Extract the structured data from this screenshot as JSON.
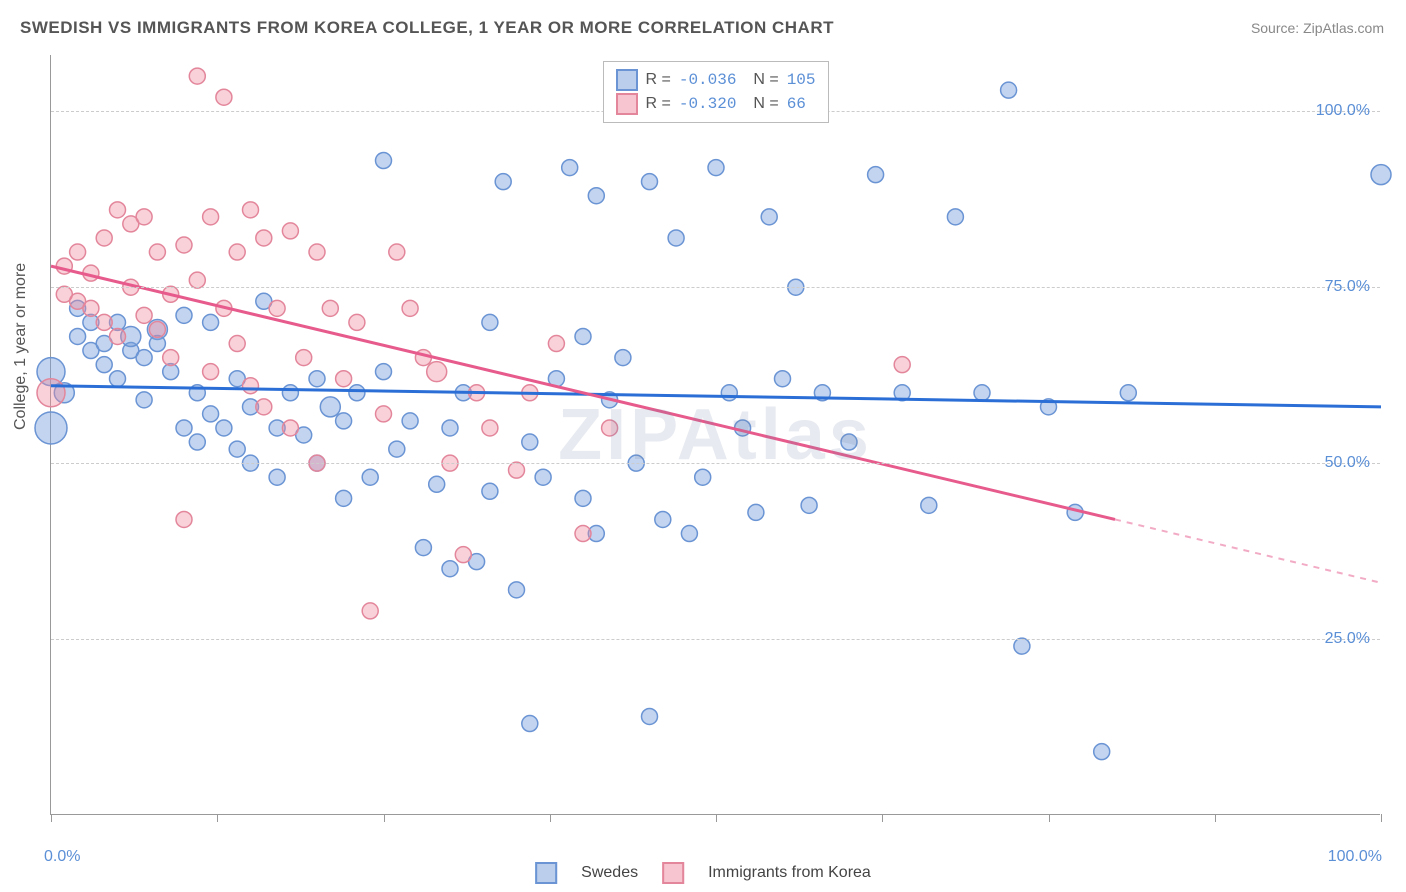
{
  "title": "SWEDISH VS IMMIGRANTS FROM KOREA COLLEGE, 1 YEAR OR MORE CORRELATION CHART",
  "source": "Source: ZipAtlas.com",
  "watermark": "ZIPAtlas",
  "ylabel": "College, 1 year or more",
  "chart": {
    "type": "scatter",
    "xlim": [
      0,
      100
    ],
    "ylim": [
      0,
      108
    ],
    "yticks": [
      25,
      50,
      75,
      100
    ],
    "ytick_labels": [
      "25.0%",
      "50.0%",
      "75.0%",
      "100.0%"
    ],
    "xticks": [
      0,
      12.5,
      25,
      37.5,
      50,
      62.5,
      75,
      87.5,
      100
    ],
    "xaxis_min_label": "0.0%",
    "xaxis_max_label": "100.0%",
    "grid_color": "#cccccc",
    "background": "#ffffff",
    "series": [
      {
        "name": "Swedes",
        "marker_fill": "rgba(120,160,220,0.45)",
        "marker_stroke": "#6a94d4",
        "line_color": "#2b6fd6",
        "R": "-0.036",
        "N": "105",
        "trend": {
          "x1": 0,
          "y1": 61,
          "x2": 100,
          "y2": 58,
          "dash_from_x": null
        },
        "points": [
          [
            0,
            63,
            14
          ],
          [
            0,
            55,
            16
          ],
          [
            1,
            60,
            10
          ],
          [
            2,
            72,
            8
          ],
          [
            2,
            68,
            8
          ],
          [
            3,
            66,
            8
          ],
          [
            3,
            70,
            8
          ],
          [
            4,
            67,
            8
          ],
          [
            4,
            64,
            8
          ],
          [
            5,
            70,
            8
          ],
          [
            5,
            62,
            8
          ],
          [
            6,
            66,
            8
          ],
          [
            6,
            68,
            10
          ],
          [
            7,
            59,
            8
          ],
          [
            7,
            65,
            8
          ],
          [
            8,
            69,
            10
          ],
          [
            8,
            67,
            8
          ],
          [
            9,
            63,
            8
          ],
          [
            10,
            71,
            8
          ],
          [
            10,
            55,
            8
          ],
          [
            11,
            60,
            8
          ],
          [
            11,
            53,
            8
          ],
          [
            12,
            70,
            8
          ],
          [
            12,
            57,
            8
          ],
          [
            13,
            55,
            8
          ],
          [
            14,
            52,
            8
          ],
          [
            14,
            62,
            8
          ],
          [
            15,
            58,
            8
          ],
          [
            15,
            50,
            8
          ],
          [
            16,
            73,
            8
          ],
          [
            17,
            55,
            8
          ],
          [
            17,
            48,
            8
          ],
          [
            18,
            60,
            8
          ],
          [
            19,
            54,
            8
          ],
          [
            20,
            62,
            8
          ],
          [
            20,
            50,
            8
          ],
          [
            21,
            58,
            10
          ],
          [
            22,
            45,
            8
          ],
          [
            22,
            56,
            8
          ],
          [
            23,
            60,
            8
          ],
          [
            24,
            48,
            8
          ],
          [
            25,
            63,
            8
          ],
          [
            25,
            93,
            8
          ],
          [
            26,
            52,
            8
          ],
          [
            27,
            56,
            8
          ],
          [
            28,
            38,
            8
          ],
          [
            29,
            47,
            8
          ],
          [
            30,
            55,
            8
          ],
          [
            30,
            35,
            8
          ],
          [
            31,
            60,
            8
          ],
          [
            32,
            36,
            8
          ],
          [
            33,
            46,
            8
          ],
          [
            33,
            70,
            8
          ],
          [
            34,
            90,
            8
          ],
          [
            35,
            32,
            8
          ],
          [
            36,
            53,
            8
          ],
          [
            36,
            13,
            8
          ],
          [
            37,
            48,
            8
          ],
          [
            38,
            62,
            8
          ],
          [
            39,
            92,
            8
          ],
          [
            40,
            68,
            8
          ],
          [
            40,
            45,
            8
          ],
          [
            41,
            88,
            8
          ],
          [
            41,
            40,
            8
          ],
          [
            42,
            59,
            8
          ],
          [
            43,
            65,
            8
          ],
          [
            44,
            50,
            8
          ],
          [
            45,
            90,
            8
          ],
          [
            45,
            14,
            8
          ],
          [
            46,
            42,
            8
          ],
          [
            47,
            82,
            8
          ],
          [
            48,
            40,
            8
          ],
          [
            49,
            48,
            8
          ],
          [
            50,
            92,
            8
          ],
          [
            51,
            60,
            8
          ],
          [
            52,
            55,
            8
          ],
          [
            53,
            43,
            8
          ],
          [
            54,
            85,
            8
          ],
          [
            55,
            62,
            8
          ],
          [
            56,
            75,
            8
          ],
          [
            57,
            44,
            8
          ],
          [
            58,
            60,
            8
          ],
          [
            60,
            53,
            8
          ],
          [
            62,
            91,
            8
          ],
          [
            64,
            60,
            8
          ],
          [
            66,
            44,
            8
          ],
          [
            68,
            85,
            8
          ],
          [
            70,
            60,
            8
          ],
          [
            72,
            103,
            8
          ],
          [
            73,
            24,
            8
          ],
          [
            75,
            58,
            8
          ],
          [
            77,
            43,
            8
          ],
          [
            79,
            9,
            8
          ],
          [
            81,
            60,
            8
          ],
          [
            100,
            91,
            10
          ]
        ]
      },
      {
        "name": "Immigrants from Korea",
        "marker_fill": "rgba(240,140,160,0.40)",
        "marker_stroke": "#e3869b",
        "line_color": "#e75a8c",
        "R": "-0.320",
        "N": "66",
        "trend": {
          "x1": 0,
          "y1": 78,
          "x2": 100,
          "y2": 33,
          "dash_from_x": 80
        },
        "points": [
          [
            0,
            60,
            14
          ],
          [
            1,
            78,
            8
          ],
          [
            1,
            74,
            8
          ],
          [
            2,
            73,
            8
          ],
          [
            2,
            80,
            8
          ],
          [
            3,
            72,
            8
          ],
          [
            3,
            77,
            8
          ],
          [
            4,
            82,
            8
          ],
          [
            4,
            70,
            8
          ],
          [
            5,
            86,
            8
          ],
          [
            5,
            68,
            8
          ],
          [
            6,
            84,
            8
          ],
          [
            6,
            75,
            8
          ],
          [
            7,
            71,
            8
          ],
          [
            7,
            85,
            8
          ],
          [
            8,
            69,
            8
          ],
          [
            8,
            80,
            8
          ],
          [
            9,
            74,
            8
          ],
          [
            9,
            65,
            8
          ],
          [
            10,
            81,
            8
          ],
          [
            10,
            42,
            8
          ],
          [
            11,
            76,
            8
          ],
          [
            11,
            105,
            8
          ],
          [
            12,
            63,
            8
          ],
          [
            12,
            85,
            8
          ],
          [
            13,
            72,
            8
          ],
          [
            13,
            102,
            8
          ],
          [
            14,
            67,
            8
          ],
          [
            14,
            80,
            8
          ],
          [
            15,
            61,
            8
          ],
          [
            15,
            86,
            8
          ],
          [
            16,
            58,
            8
          ],
          [
            16,
            82,
            8
          ],
          [
            17,
            72,
            8
          ],
          [
            18,
            83,
            8
          ],
          [
            18,
            55,
            8
          ],
          [
            19,
            65,
            8
          ],
          [
            20,
            80,
            8
          ],
          [
            20,
            50,
            8
          ],
          [
            21,
            72,
            8
          ],
          [
            22,
            62,
            8
          ],
          [
            23,
            70,
            8
          ],
          [
            24,
            29,
            8
          ],
          [
            25,
            57,
            8
          ],
          [
            26,
            80,
            8
          ],
          [
            27,
            72,
            8
          ],
          [
            28,
            65,
            8
          ],
          [
            29,
            63,
            10
          ],
          [
            30,
            50,
            8
          ],
          [
            31,
            37,
            8
          ],
          [
            32,
            60,
            8
          ],
          [
            33,
            55,
            8
          ],
          [
            35,
            49,
            8
          ],
          [
            36,
            60,
            8
          ],
          [
            38,
            67,
            8
          ],
          [
            40,
            40,
            8
          ],
          [
            42,
            55,
            8
          ],
          [
            64,
            64,
            8
          ]
        ]
      }
    ],
    "legend_swatch": {
      "swedes": {
        "fill": "rgba(120,160,220,0.5)",
        "border": "#6a94d4"
      },
      "korea": {
        "fill": "rgba(240,140,160,0.5)",
        "border": "#e3869b"
      }
    },
    "bottom_legend": [
      {
        "label": "Swedes",
        "fill": "rgba(120,160,220,0.5)",
        "border": "#6a94d4"
      },
      {
        "label": "Immigrants from Korea",
        "fill": "rgba(240,140,160,0.5)",
        "border": "#e3869b"
      }
    ]
  }
}
